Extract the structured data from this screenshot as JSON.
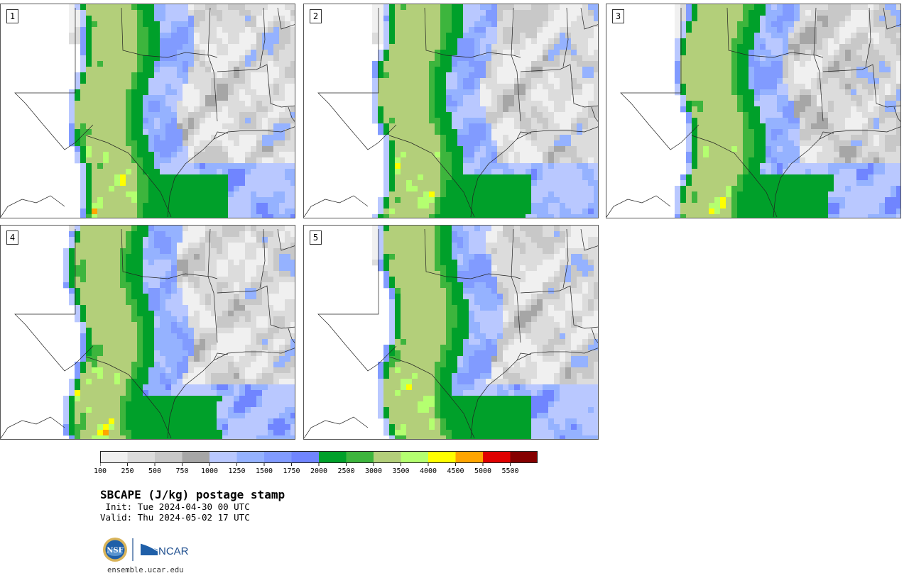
{
  "panels": [
    {
      "label": "1",
      "variant": 0
    },
    {
      "label": "2",
      "variant": 1
    },
    {
      "label": "3",
      "variant": 2
    },
    {
      "label": "4",
      "variant": 3
    },
    {
      "label": "5",
      "variant": 4
    }
  ],
  "colorbar": {
    "colors": [
      "#f0f0f0",
      "#dcdcdc",
      "#c8c8c8",
      "#a6a6a6",
      "#b9c8ff",
      "#95b2ff",
      "#819bff",
      "#7085ff",
      "#00a02a",
      "#3db53d",
      "#b3cf7a",
      "#b4ff70",
      "#ffff00",
      "#ffa500",
      "#e00000",
      "#850000"
    ],
    "tick_labels": [
      "100",
      "250",
      "500",
      "750",
      "1000",
      "1250",
      "1500",
      "1750",
      "2000",
      "2500",
      "3000",
      "3500",
      "4000",
      "4500",
      "5000",
      "5500"
    ]
  },
  "title": "SBCAPE (J/kg) postage stamp",
  "init": " Init: Tue 2024-04-30 00 UTC",
  "valid": "Valid: Thu 2024-05-02 17 UTC",
  "logos": {
    "nsf": "NSF",
    "ncar": "NCAR"
  },
  "url": "ensemble.ucar.edu"
}
